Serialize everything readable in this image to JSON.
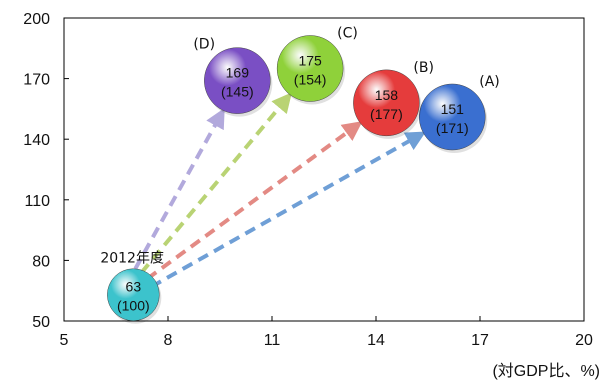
{
  "chart_data": {
    "type": "scatter",
    "title": "",
    "top_caption": "",
    "xunit": "(対GDP比、%)",
    "xlim": [
      5,
      20
    ],
    "ylim": [
      50,
      200
    ],
    "xticks": [
      5,
      8,
      11,
      14,
      17,
      20
    ],
    "yticks": [
      50,
      80,
      110,
      140,
      170,
      200
    ],
    "grid": false,
    "series": [
      {
        "label": "2012年度",
        "x": 7.0,
        "y": 63,
        "value": "63",
        "value2": "(100)",
        "color": "#3cc3cc"
      },
      {
        "label": "(A)",
        "x": 16.2,
        "y": 151,
        "value": "151",
        "value2": "(171)",
        "color": "#3a6fd0"
      },
      {
        "label": "(B)",
        "x": 14.3,
        "y": 158,
        "value": "158",
        "value2": "(177)",
        "color": "#e53c3c"
      },
      {
        "label": "(C)",
        "x": 12.1,
        "y": 175,
        "value": "175",
        "value2": "(154)",
        "color": "#8fd13a"
      },
      {
        "label": "(D)",
        "x": 10.0,
        "y": 169,
        "value": "169",
        "value2": "(145)",
        "color": "#7a4fc4"
      }
    ]
  }
}
